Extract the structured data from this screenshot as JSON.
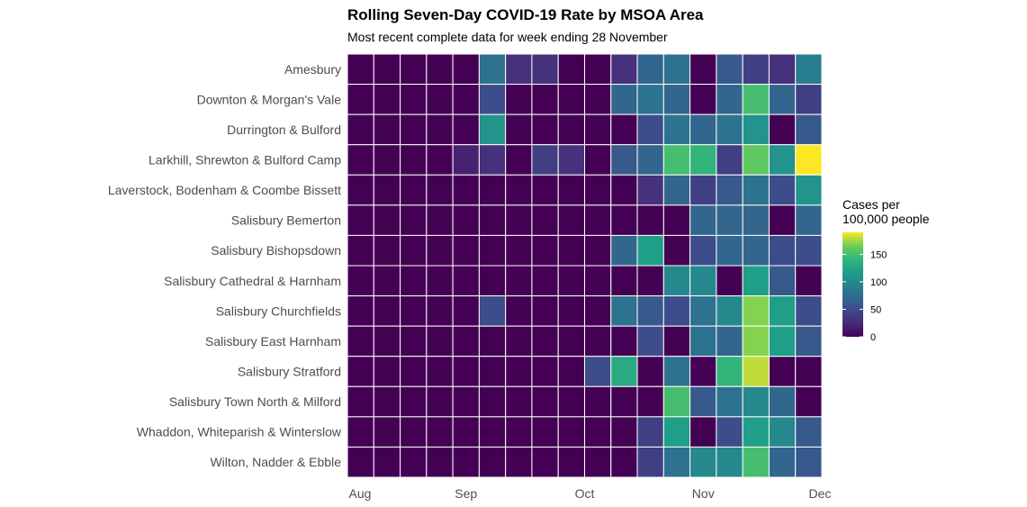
{
  "title": "Rolling Seven-Day COVID-19 Rate by MSOA Area",
  "subtitle": "Most recent complete data for week ending 28 November",
  "chart_data": {
    "type": "heatmap",
    "x_ticks": [
      "Aug",
      "Sep",
      "Oct",
      "Nov",
      "Dec"
    ],
    "rows": [
      {
        "label": "Amesbury",
        "values": [
          0,
          0,
          0,
          0,
          0,
          80,
          30,
          30,
          0,
          0,
          30,
          70,
          80,
          0,
          60,
          40,
          30,
          90
        ]
      },
      {
        "label": "Downton & Morgan's Vale",
        "values": [
          0,
          0,
          0,
          0,
          0,
          50,
          0,
          0,
          0,
          0,
          70,
          80,
          70,
          0,
          70,
          150,
          70,
          40
        ]
      },
      {
        "label": "Durrington & Bulford",
        "values": [
          0,
          0,
          0,
          0,
          0,
          110,
          0,
          0,
          0,
          0,
          0,
          50,
          80,
          70,
          80,
          110,
          0,
          60
        ]
      },
      {
        "label": "Larkhill, Shrewton & Bulford Camp",
        "values": [
          0,
          0,
          0,
          0,
          20,
          30,
          0,
          40,
          30,
          0,
          60,
          70,
          150,
          140,
          40,
          160,
          110,
          190
        ]
      },
      {
        "label": "Laverstock, Bodenham & Coombe Bissett",
        "values": [
          0,
          0,
          0,
          0,
          0,
          0,
          0,
          0,
          0,
          0,
          0,
          30,
          70,
          40,
          60,
          80,
          50,
          110
        ]
      },
      {
        "label": "Salisbury Bemerton",
        "values": [
          0,
          0,
          0,
          0,
          0,
          0,
          0,
          0,
          0,
          0,
          0,
          0,
          0,
          70,
          70,
          70,
          0,
          70
        ]
      },
      {
        "label": "Salisbury Bishopsdown",
        "values": [
          0,
          0,
          0,
          0,
          0,
          0,
          0,
          0,
          0,
          0,
          70,
          120,
          0,
          50,
          70,
          70,
          50,
          50
        ]
      },
      {
        "label": "Salisbury Cathedral & Harnham",
        "values": [
          0,
          0,
          0,
          0,
          0,
          0,
          0,
          0,
          0,
          0,
          0,
          0,
          100,
          100,
          0,
          120,
          60,
          0
        ]
      },
      {
        "label": "Salisbury Churchfields",
        "values": [
          0,
          0,
          0,
          0,
          0,
          50,
          0,
          0,
          0,
          0,
          80,
          60,
          50,
          80,
          100,
          170,
          120,
          50
        ]
      },
      {
        "label": "Salisbury East Harnham",
        "values": [
          0,
          0,
          0,
          0,
          0,
          0,
          0,
          0,
          0,
          0,
          0,
          50,
          0,
          80,
          70,
          170,
          120,
          60
        ]
      },
      {
        "label": "Salisbury Stratford",
        "values": [
          0,
          0,
          0,
          0,
          0,
          0,
          0,
          0,
          0,
          50,
          130,
          0,
          80,
          0,
          140,
          180,
          0,
          0
        ]
      },
      {
        "label": "Salisbury Town North & Milford",
        "values": [
          0,
          0,
          0,
          0,
          0,
          0,
          0,
          0,
          0,
          0,
          0,
          0,
          150,
          60,
          80,
          100,
          70,
          0
        ]
      },
      {
        "label": "Whaddon, Whiteparish & Winterslow",
        "values": [
          0,
          0,
          0,
          0,
          0,
          0,
          0,
          0,
          0,
          0,
          0,
          40,
          120,
          0,
          50,
          120,
          100,
          60
        ]
      },
      {
        "label": "Wilton, Nadder & Ebble",
        "values": [
          0,
          0,
          0,
          0,
          0,
          0,
          0,
          0,
          0,
          0,
          0,
          40,
          80,
          100,
          100,
          150,
          70,
          60
        ]
      }
    ],
    "color_scale": "viridis",
    "value_range": [
      0,
      190
    ],
    "legend": {
      "title_line1": "Cases per",
      "title_line2": "100,000 people",
      "ticks": [
        0,
        50,
        100,
        150
      ],
      "placement": "right"
    }
  }
}
